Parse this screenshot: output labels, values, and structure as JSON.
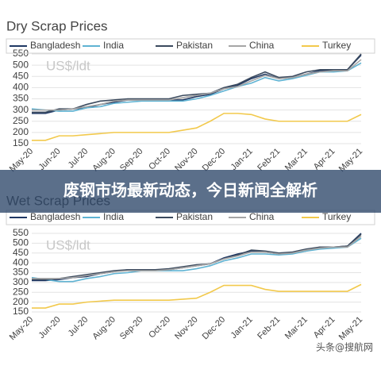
{
  "chart_data": [
    {
      "type": "line",
      "title": "Dry Scrap Prices",
      "annotation": "US$/ldt",
      "categories": [
        "May-20",
        null,
        "Jun-20",
        null,
        "Jul-20",
        null,
        "Aug-20",
        null,
        "Sep-20",
        null,
        "Oct-20",
        null,
        "Nov-20",
        null,
        "Dec-20",
        null,
        "Jan-21",
        null,
        "Feb-21",
        null,
        "Mar-21",
        null,
        "Apr-21",
        null,
        "May-21"
      ],
      "series": [
        {
          "name": "Bangladesh",
          "color": "#1f3864",
          "values": [
            285,
            285,
            300,
            305,
            310,
            325,
            335,
            345,
            345,
            345,
            345,
            345,
            360,
            370,
            395,
            410,
            440,
            460,
            440,
            445,
            460,
            475,
            475,
            480,
            545
          ]
        },
        {
          "name": "India",
          "color": "#5fb3d3",
          "values": [
            305,
            300,
            295,
            295,
            310,
            315,
            330,
            335,
            340,
            340,
            340,
            340,
            350,
            365,
            385,
            405,
            420,
            445,
            430,
            440,
            455,
            470,
            470,
            475,
            510
          ]
        },
        {
          "name": "Pakistan",
          "color": "#3b4a5e",
          "values": [
            290,
            290,
            305,
            305,
            325,
            340,
            345,
            350,
            350,
            350,
            350,
            365,
            370,
            375,
            400,
            415,
            445,
            470,
            445,
            450,
            470,
            480,
            480,
            480,
            550
          ]
        },
        {
          "name": "China",
          "color": "#a6a6a6",
          "values": [
            300,
            300,
            300,
            305,
            315,
            325,
            340,
            345,
            345,
            345,
            345,
            355,
            365,
            375,
            395,
            405,
            430,
            455,
            440,
            445,
            460,
            470,
            475,
            475,
            525
          ]
        },
        {
          "name": "Turkey",
          "color": "#f2c94c",
          "values": [
            165,
            165,
            185,
            185,
            190,
            195,
            200,
            200,
            200,
            200,
            200,
            210,
            220,
            250,
            285,
            285,
            280,
            260,
            250,
            250,
            250,
            250,
            250,
            250,
            280
          ]
        }
      ],
      "ylim": [
        150,
        550
      ],
      "yticks": [
        150,
        200,
        250,
        300,
        350,
        400,
        450,
        500,
        550
      ],
      "grid": true
    },
    {
      "type": "line",
      "title": "Wet Scrap Prices",
      "annotation": "US$/ldt",
      "categories": [
        "May-20",
        null,
        "Jun-20",
        null,
        "Jul-20",
        null,
        "Aug-20",
        null,
        "Sep-20",
        null,
        "Oct-20",
        null,
        "Nov-20",
        null,
        "Dec-20",
        null,
        "Jan-21",
        null,
        "Feb-21",
        null,
        "Mar-21",
        null,
        "Apr-21",
        null,
        "May-21"
      ],
      "series": [
        {
          "name": "Bangladesh",
          "color": "#1f3864",
          "values": [
            310,
            310,
            315,
            325,
            330,
            345,
            355,
            365,
            365,
            365,
            365,
            375,
            385,
            395,
            425,
            445,
            460,
            455,
            445,
            450,
            460,
            480,
            480,
            485,
            550
          ]
        },
        {
          "name": "India",
          "color": "#5fb3d3",
          "values": [
            325,
            315,
            305,
            305,
            320,
            330,
            345,
            350,
            360,
            360,
            360,
            360,
            370,
            385,
            410,
            425,
            445,
            445,
            440,
            445,
            460,
            470,
            475,
            480,
            525
          ]
        },
        {
          "name": "Pakistan",
          "color": "#3b4a5e",
          "values": [
            315,
            315,
            320,
            330,
            340,
            350,
            360,
            365,
            365,
            365,
            370,
            380,
            390,
            395,
            420,
            440,
            465,
            460,
            450,
            455,
            470,
            480,
            480,
            485,
            545
          ]
        },
        {
          "name": "China",
          "color": "#a6a6a6",
          "values": [
            320,
            320,
            320,
            325,
            335,
            345,
            355,
            360,
            360,
            360,
            365,
            375,
            385,
            395,
            420,
            435,
            455,
            455,
            445,
            450,
            465,
            475,
            480,
            480,
            535
          ]
        },
        {
          "name": "Turkey",
          "color": "#f2c94c",
          "values": [
            170,
            170,
            190,
            190,
            200,
            205,
            210,
            210,
            210,
            210,
            210,
            215,
            220,
            250,
            285,
            285,
            285,
            265,
            255,
            255,
            255,
            255,
            255,
            255,
            290
          ]
        }
      ],
      "ylim": [
        150,
        550
      ],
      "yticks": [
        150,
        200,
        250,
        300,
        350,
        400,
        450,
        500,
        550
      ],
      "grid": true
    }
  ],
  "banner": "废钢市场最新动态，今日新闻全解析",
  "watermark": "头条@搜航网"
}
